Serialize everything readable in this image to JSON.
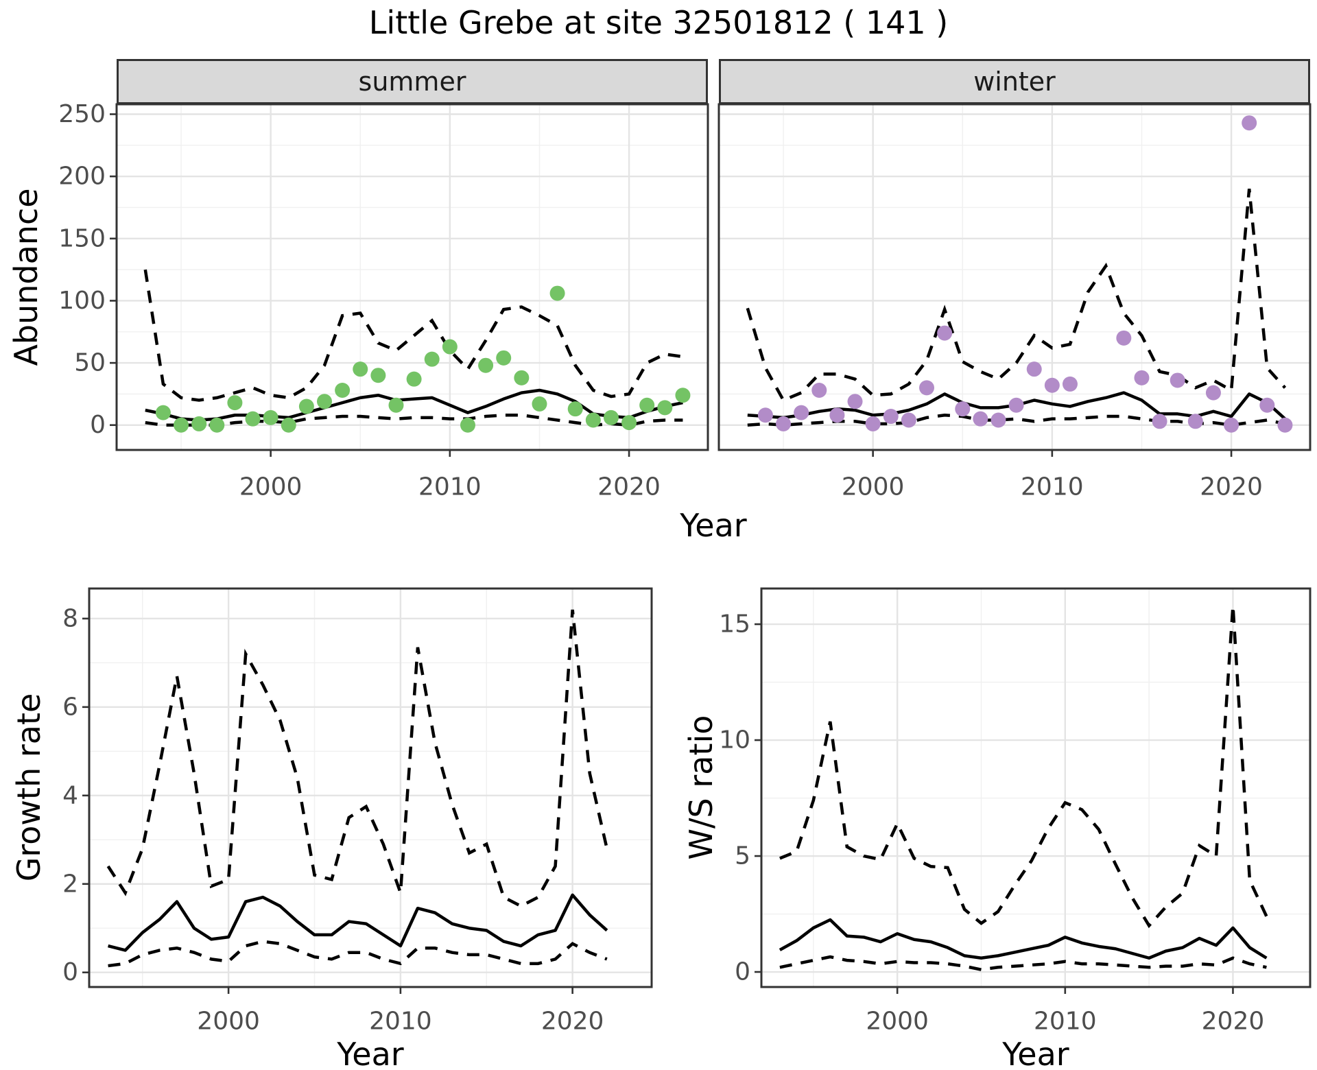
{
  "title": "Little Grebe at site 32501812 ( 141 )",
  "axis_labels": {
    "x": "Year",
    "abundance": "Abundance",
    "growth": "Growth rate",
    "ws": "W/S ratio"
  },
  "facets": {
    "summer": "summer",
    "winter": "winter"
  },
  "colors": {
    "summer_point": "#74c365",
    "winter_point": "#b28cc8",
    "line": "#000000",
    "strip_bg": "#d9d9d9",
    "panel_border": "#333333",
    "grid_major": "#e4e4e4",
    "grid_minor": "#f0f0f0",
    "tick_text": "#4d4d4d",
    "tick_mark": "#333333",
    "panel_bg": "#ffffff"
  },
  "chart_data": [
    {
      "id": "abundance_summer",
      "type": "line+scatter",
      "facet_label": "summer",
      "ylabel": "Abundance",
      "xlabel": "Year",
      "xlim": [
        1991.4,
        2024.4
      ],
      "ylim": [
        -20,
        258
      ],
      "x_ticks": [
        2000,
        2010,
        2020
      ],
      "y_ticks": [
        0,
        50,
        100,
        150,
        200,
        250
      ],
      "x": [
        1993,
        1994,
        1995,
        1996,
        1997,
        1998,
        1999,
        2000,
        2001,
        2002,
        2003,
        2004,
        2005,
        2006,
        2007,
        2008,
        2009,
        2010,
        2011,
        2012,
        2013,
        2014,
        2015,
        2016,
        2017,
        2018,
        2019,
        2020,
        2021,
        2022,
        2023
      ],
      "median": [
        12,
        9,
        5,
        4,
        5,
        8,
        8,
        7,
        6,
        10,
        14,
        18,
        22,
        24,
        20,
        21,
        22,
        16,
        10,
        15,
        21,
        26,
        28,
        25,
        19,
        9,
        7,
        6,
        11,
        15,
        18
      ],
      "upper": [
        125,
        33,
        22,
        20,
        22,
        26,
        30,
        24,
        22,
        30,
        48,
        88,
        90,
        66,
        60,
        72,
        84,
        60,
        45,
        68,
        93,
        95,
        88,
        80,
        48,
        28,
        23,
        25,
        50,
        57,
        55
      ],
      "lower": [
        2,
        0,
        0,
        0,
        0,
        2,
        3,
        3,
        2,
        5,
        6,
        7,
        7,
        6,
        5,
        6,
        6,
        5,
        5,
        7,
        8,
        8,
        6,
        4,
        2,
        0,
        1,
        0,
        3,
        4,
        4
      ],
      "obs_years": [
        1994,
        1995,
        1996,
        1997,
        1998,
        1999,
        2000,
        2001,
        2002,
        2003,
        2004,
        2005,
        2006,
        2007,
        2008,
        2009,
        2010,
        2011,
        2012,
        2013,
        2014,
        2015,
        2016,
        2017,
        2018,
        2019,
        2020,
        2021,
        2022,
        2023
      ],
      "obs_values": [
        10,
        0,
        1,
        0,
        18,
        5,
        6,
        0,
        15,
        19,
        28,
        45,
        40,
        16,
        37,
        53,
        63,
        0,
        48,
        54,
        38,
        17,
        106,
        13,
        4,
        6,
        2,
        16,
        14,
        24
      ],
      "point_color": "#74c365"
    },
    {
      "id": "abundance_winter",
      "type": "line+scatter",
      "facet_label": "winter",
      "ylabel": "Abundance",
      "xlabel": "Year",
      "xlim": [
        1991.4,
        2024.4
      ],
      "ylim": [
        -20,
        258
      ],
      "x_ticks": [
        2000,
        2010,
        2020
      ],
      "y_ticks": [
        0,
        50,
        100,
        150,
        200,
        250
      ],
      "x": [
        1993,
        1994,
        1995,
        1996,
        1997,
        1998,
        1999,
        2000,
        2001,
        2002,
        2003,
        2004,
        2005,
        2006,
        2007,
        2008,
        2009,
        2010,
        2011,
        2012,
        2013,
        2014,
        2015,
        2016,
        2017,
        2018,
        2019,
        2020,
        2021,
        2022,
        2023
      ],
      "median": [
        8,
        7,
        6,
        8,
        11,
        13,
        12,
        8,
        9,
        12,
        17,
        25,
        18,
        14,
        14,
        16,
        20,
        17,
        15,
        19,
        22,
        26,
        20,
        9,
        9,
        7,
        11,
        7,
        25,
        18,
        5
      ],
      "upper": [
        94,
        46,
        20,
        26,
        41,
        41,
        37,
        24,
        25,
        33,
        52,
        93,
        51,
        43,
        37,
        50,
        72,
        62,
        65,
        107,
        128,
        90,
        72,
        43,
        40,
        30,
        36,
        28,
        190,
        46,
        30
      ],
      "lower": [
        0,
        1,
        0,
        1,
        2,
        3,
        3,
        1,
        1,
        2,
        6,
        8,
        7,
        4,
        4,
        5,
        3,
        5,
        5,
        6,
        7,
        7,
        5,
        3,
        3,
        1,
        2,
        0,
        2,
        4,
        1
      ],
      "obs_years": [
        1994,
        1995,
        1996,
        1997,
        1998,
        1999,
        2000,
        2001,
        2002,
        2003,
        2004,
        2005,
        2006,
        2007,
        2008,
        2009,
        2010,
        2011,
        2014,
        2015,
        2016,
        2017,
        2018,
        2019,
        2020,
        2021,
        2022,
        2023
      ],
      "obs_values": [
        8,
        1,
        10,
        28,
        8,
        19,
        1,
        7,
        4,
        30,
        74,
        13,
        5,
        4,
        16,
        45,
        32,
        33,
        70,
        38,
        3,
        36,
        3,
        26,
        0,
        243,
        16,
        0
      ],
      "point_color": "#b28cc8"
    },
    {
      "id": "growth_rate",
      "type": "line",
      "ylabel": "Growth rate",
      "xlabel": "Year",
      "xlim": [
        1991.9,
        2024.6
      ],
      "ylim": [
        -0.33,
        8.68
      ],
      "x_ticks": [
        2000,
        2010,
        2020
      ],
      "y_ticks": [
        0,
        2,
        4,
        6,
        8
      ],
      "x": [
        1993,
        1994,
        1995,
        1996,
        1997,
        1998,
        1999,
        2000,
        2001,
        2002,
        2003,
        2004,
        2005,
        2006,
        2007,
        2008,
        2009,
        2010,
        2011,
        2012,
        2013,
        2014,
        2015,
        2016,
        2017,
        2018,
        2019,
        2020,
        2021,
        2022
      ],
      "median": [
        0.6,
        0.5,
        0.9,
        1.2,
        1.6,
        1.0,
        0.75,
        0.8,
        1.6,
        1.7,
        1.5,
        1.15,
        0.85,
        0.85,
        1.15,
        1.1,
        0.85,
        0.6,
        1.45,
        1.35,
        1.1,
        1.0,
        0.95,
        0.7,
        0.6,
        0.85,
        0.95,
        1.75,
        1.3,
        0.95
      ],
      "upper": [
        2.4,
        1.8,
        2.8,
        4.7,
        6.7,
        4.5,
        1.95,
        2.1,
        7.2,
        6.5,
        5.7,
        4.4,
        2.2,
        2.1,
        3.5,
        3.75,
        2.9,
        1.8,
        7.35,
        5.2,
        3.8,
        2.7,
        2.9,
        1.7,
        1.5,
        1.7,
        2.4,
        8.2,
        4.5,
        2.8
      ],
      "lower": [
        0.15,
        0.2,
        0.4,
        0.5,
        0.55,
        0.45,
        0.3,
        0.25,
        0.6,
        0.7,
        0.65,
        0.5,
        0.35,
        0.3,
        0.45,
        0.45,
        0.3,
        0.2,
        0.55,
        0.55,
        0.45,
        0.4,
        0.4,
        0.3,
        0.2,
        0.2,
        0.3,
        0.65,
        0.45,
        0.3
      ],
      "obs_years": [],
      "obs_values": [],
      "point_color": "#000000"
    },
    {
      "id": "ws_ratio",
      "type": "line",
      "ylabel": "W/S ratio",
      "xlabel": "Year",
      "xlim": [
        1991.9,
        2024.6
      ],
      "ylim": [
        -0.65,
        16.54
      ],
      "x_ticks": [
        2000,
        2010,
        2020
      ],
      "y_ticks": [
        0,
        5,
        10,
        15
      ],
      "x": [
        1993,
        1994,
        1995,
        1996,
        1997,
        1998,
        1999,
        2000,
        2001,
        2002,
        2003,
        2004,
        2005,
        2006,
        2007,
        2008,
        2009,
        2010,
        2011,
        2012,
        2013,
        2014,
        2015,
        2016,
        2017,
        2018,
        2019,
        2020,
        2021,
        2022
      ],
      "median": [
        0.95,
        1.35,
        1.9,
        2.25,
        1.55,
        1.5,
        1.3,
        1.65,
        1.4,
        1.3,
        1.05,
        0.7,
        0.6,
        0.7,
        0.85,
        1.0,
        1.15,
        1.5,
        1.25,
        1.1,
        1.0,
        0.8,
        0.6,
        0.9,
        1.05,
        1.45,
        1.15,
        1.9,
        1.05,
        0.6
      ],
      "upper": [
        4.9,
        5.2,
        7.4,
        10.8,
        5.4,
        5.0,
        4.85,
        6.4,
        4.9,
        4.55,
        4.5,
        2.7,
        2.1,
        2.6,
        3.75,
        4.8,
        6.2,
        7.3,
        7.0,
        6.15,
        4.65,
        3.2,
        2.0,
        2.8,
        3.4,
        5.45,
        5.0,
        15.8,
        3.95,
        2.4
      ],
      "lower": [
        0.2,
        0.35,
        0.5,
        0.65,
        0.5,
        0.45,
        0.35,
        0.45,
        0.4,
        0.4,
        0.35,
        0.25,
        0.1,
        0.2,
        0.25,
        0.3,
        0.35,
        0.45,
        0.35,
        0.35,
        0.3,
        0.25,
        0.2,
        0.25,
        0.25,
        0.35,
        0.3,
        0.6,
        0.35,
        0.2
      ],
      "obs_years": [],
      "obs_values": [],
      "point_color": "#000000"
    }
  ]
}
